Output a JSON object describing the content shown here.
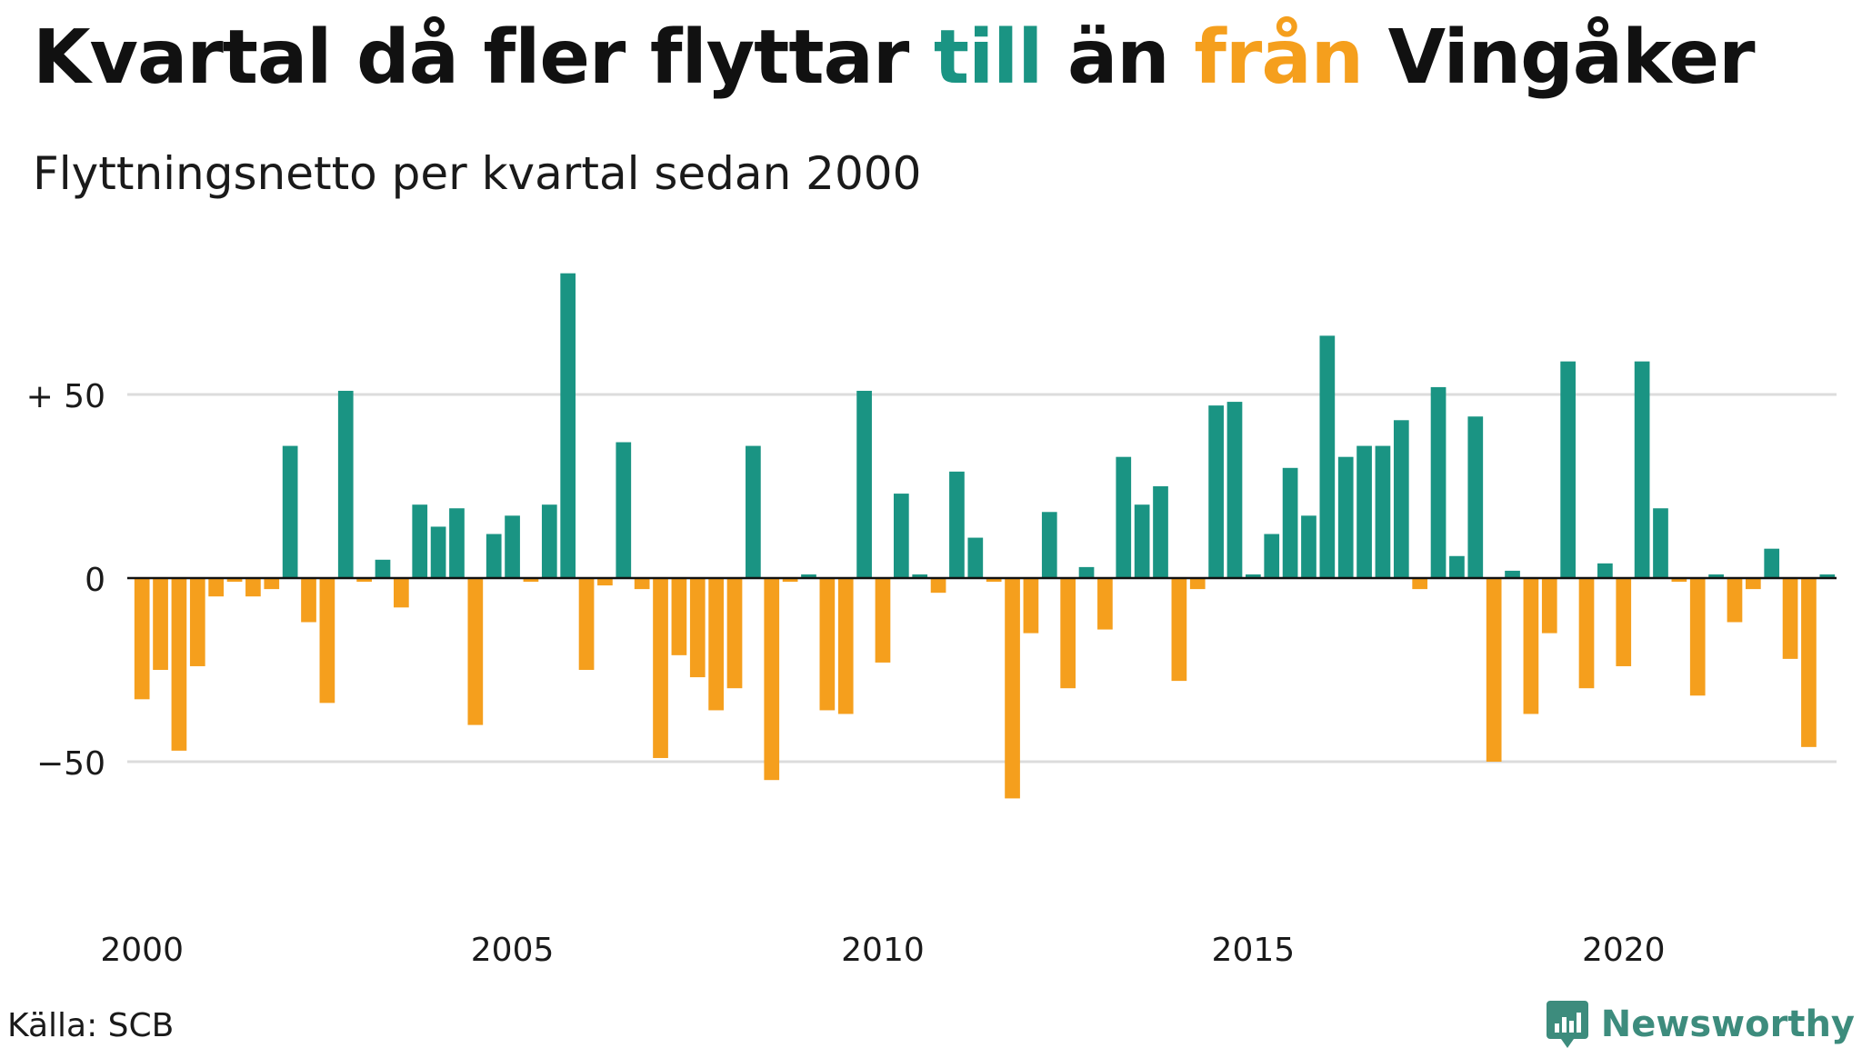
{
  "header": {
    "title_parts": {
      "part1": "Kvartal då fler flyttar ",
      "till": "till",
      "part2": " än ",
      "fran": "från",
      "part3": " Vingåker"
    },
    "subtitle": "Flyttningsnetto per kvartal sedan 2000"
  },
  "colors": {
    "positive": "#1a9483",
    "negative": "#f59f1d",
    "brand": "#3d8c7d"
  },
  "footer": {
    "source": "Källa: SCB",
    "brand": "Newsworthy",
    "brand_icon": "newsworthy-logo-icon"
  },
  "chart_data": {
    "type": "bar",
    "title": "Kvartal då fler flyttar till än från Vingåker",
    "subtitle": "Flyttningsnetto per kvartal sedan 2000",
    "xlabel": "",
    "ylabel": "",
    "x_start": {
      "year": 2000,
      "quarter": 1
    },
    "x_tick_labels": [
      "2000",
      "2005",
      "2010",
      "2015",
      "2020"
    ],
    "y_tick_values": [
      50,
      0,
      -50
    ],
    "y_tick_labels": [
      "+ 50",
      "0",
      "−50"
    ],
    "ylim": [
      -75,
      85
    ],
    "grid": true,
    "legend": "none",
    "series": [
      {
        "values": [
          -33,
          -25,
          -47,
          -24,
          -5,
          -1,
          -5,
          -3,
          36,
          -12,
          -34,
          51,
          -1,
          5,
          -8,
          20,
          14,
          19,
          -40,
          12,
          17,
          -1,
          20,
          83,
          -25,
          -2,
          37,
          -3,
          -49,
          -21,
          -27,
          -36,
          -30,
          36,
          -55,
          -1,
          1,
          -36,
          -37,
          51,
          -23,
          23,
          1,
          -4,
          29,
          11,
          -1,
          -60,
          -15,
          18,
          -30,
          3,
          -14,
          33,
          20,
          25,
          -28,
          -3,
          47,
          48,
          1,
          12,
          30,
          17,
          66,
          33,
          36,
          36,
          43,
          -3,
          52,
          6,
          44,
          -50,
          2,
          -37,
          -15,
          59,
          -30,
          4,
          -24,
          59,
          19,
          -1,
          -32,
          1,
          -12,
          -3,
          8,
          -22,
          -46,
          1
        ]
      }
    ]
  }
}
